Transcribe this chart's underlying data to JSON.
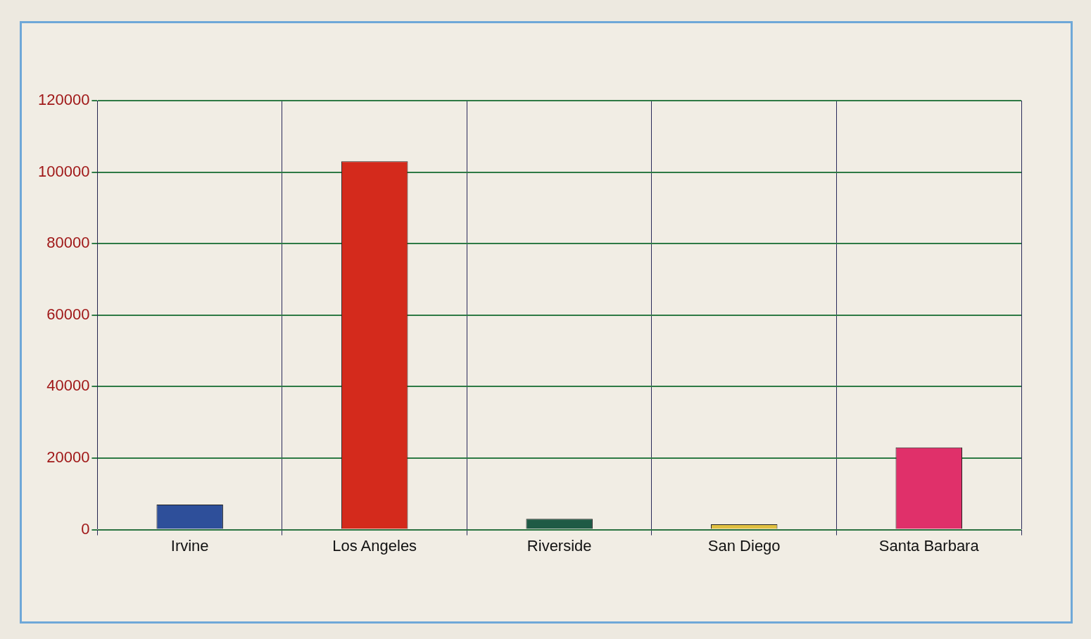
{
  "chart_data": {
    "type": "bar",
    "categories": [
      "Irvine",
      "Los Angeles",
      "Riverside",
      "San Diego",
      "Santa Barbara"
    ],
    "values": [
      7000,
      103000,
      3000,
      1500,
      23000
    ],
    "colors": [
      "#2e4f9a",
      "#d42a1c",
      "#1e5a45",
      "#e0c040",
      "#e0306a"
    ],
    "ylim": [
      0,
      120000
    ],
    "yticks": [
      0,
      20000,
      40000,
      60000,
      80000,
      100000,
      120000
    ],
    "grid": true,
    "legend": false
  }
}
